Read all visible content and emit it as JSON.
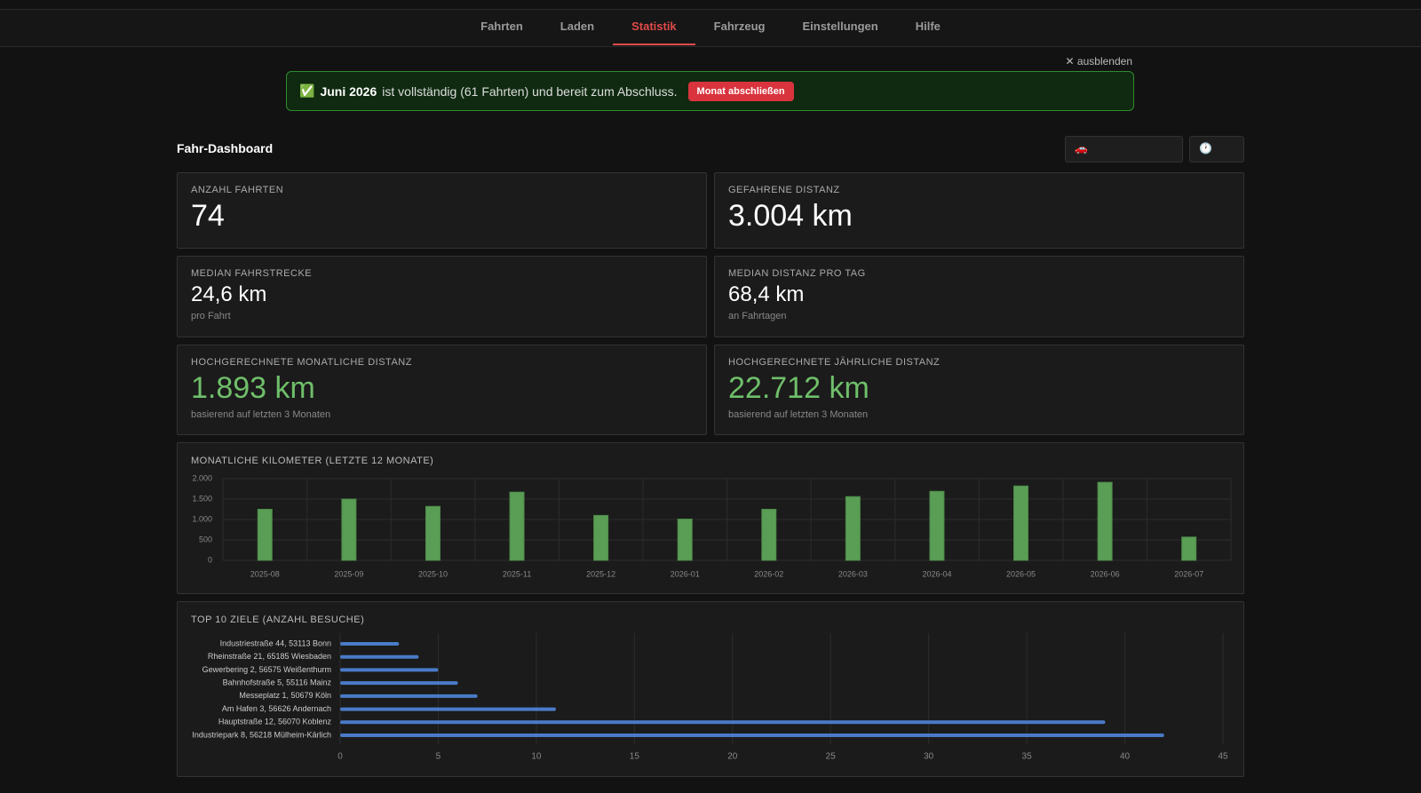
{
  "nav": {
    "items": [
      "Fahrten",
      "Laden",
      "Statistik",
      "Fahrzeug",
      "Einstellungen",
      "Hilfe"
    ]
  },
  "banner": {
    "hide": "✕ ausblenden",
    "icon": "✅",
    "month": "Juni 2026",
    "text": "ist vollständig (61 Fahrten) und bereit zum Abschluss.",
    "button": "Monat abschließen"
  },
  "dashboard": {
    "title": "Fahr-Dashboard",
    "vehicle_icon": "🚗",
    "time_icon": "🕐"
  },
  "cards": [
    {
      "label": "ANZAHL FAHRTEN",
      "value": "74"
    },
    {
      "label": "GEFAHRENE DISTANZ",
      "value": "3.004 km"
    },
    {
      "label": "MEDIAN FAHRSTRECKE",
      "value": "24,6 km",
      "note": "pro Fahrt"
    },
    {
      "label": "MEDIAN DISTANZ PRO TAG",
      "value": "68,4 km",
      "note": "an Fahrtagen"
    },
    {
      "label": "HOCHGERECHNETE MONATLICHE DISTANZ",
      "value": "1.893 km",
      "note": "basierend auf letzten 3 Monaten",
      "color": "#6fbf6a"
    },
    {
      "label": "HOCHGERECHNETE JÄHRLICHE DISTANZ",
      "value": "22.712 km",
      "note": "basierend auf letzten 3 Monaten",
      "color": "#6fbf6a"
    }
  ],
  "chart_data": [
    {
      "type": "bar",
      "orientation": "vertical",
      "title": "MONATLICHE KILOMETER (LETZTE 12 MONATE)",
      "categories": [
        "2025-08",
        "2025-09",
        "2025-10",
        "2025-11",
        "2025-12",
        "2026-01",
        "2026-02",
        "2026-03",
        "2026-04",
        "2026-05",
        "2026-06",
        "2026-07"
      ],
      "values": [
        1250,
        1500,
        1320,
        1670,
        1100,
        1010,
        1250,
        1560,
        1690,
        1820,
        1910,
        570
      ],
      "color": "#5a9e55",
      "ylim": [
        0,
        2000
      ],
      "yticks": [
        0,
        500,
        {
          "value": 1000,
          "label": "1.000"
        },
        {
          "value": 1500,
          "label": "1.500"
        },
        {
          "value": 2000,
          "label": "2.000"
        }
      ],
      "grid": true
    },
    {
      "type": "bar",
      "orientation": "horizontal",
      "title": "TOP 10 ZIELE (ANZAHL BESUCHE)",
      "categories": [
        "Industriestraße 44, 53113 Bonn",
        "Rheinstraße 21, 65185 Wiesbaden",
        "Gewerbering 2, 56575 Weißenthurm",
        "Bahnhofstraße 5, 55116 Mainz",
        "Messeplatz 1, 50679 Köln",
        "Am Hafen 3, 56626 Andernach",
        "Hauptstraße 12, 56070 Koblenz",
        "Industriepark 8, 56218 Mülheim-Kärlich"
      ],
      "values": [
        3,
        4,
        5,
        6,
        7,
        11,
        39,
        42
      ],
      "color": "#4a7bc8",
      "xlim": [
        0,
        45
      ],
      "xticks": [
        0,
        5,
        10,
        15,
        20,
        25,
        30,
        35,
        40,
        45
      ],
      "grid": true
    }
  ]
}
